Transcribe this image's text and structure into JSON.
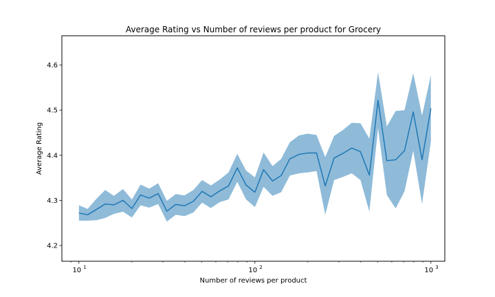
{
  "chart_data": {
    "type": "line",
    "title": "Average Rating vs Number of reviews per product for Grocery",
    "xlabel": "Number of reviews per product",
    "ylabel": "Average Rating",
    "xscale": "log",
    "xlim": [
      8,
      1200
    ],
    "ylim": [
      4.165,
      4.665
    ],
    "grid": false,
    "legend": "none",
    "x_ticks": [
      {
        "value": 10,
        "base": "10",
        "exp": "1"
      },
      {
        "value": 100,
        "base": "10",
        "exp": "2"
      },
      {
        "value": 1000,
        "base": "10",
        "exp": "3"
      }
    ],
    "y_ticks": [
      4.2,
      4.3,
      4.4,
      4.5,
      4.6
    ],
    "y_tick_labels": [
      "4.2",
      "4.3",
      "4.4",
      "4.5",
      "4.6"
    ],
    "colors": {
      "line": "#1f77b4",
      "band": "#1f77b4",
      "band_opacity": 0.5
    },
    "series": [
      {
        "x": [
          10,
          11.2,
          12.6,
          14.1,
          15.8,
          17.8,
          20,
          22.4,
          25.1,
          28.2,
          31.6,
          35.5,
          39.8,
          44.7,
          50.1,
          56.2,
          63.1,
          70.8,
          79.4,
          89.1,
          100,
          112,
          126,
          141,
          158,
          178,
          200,
          224,
          251,
          282,
          316,
          355,
          398,
          447,
          501,
          562,
          631,
          708,
          794,
          891,
          1000
        ],
        "y": [
          4.272,
          4.268,
          4.28,
          4.292,
          4.29,
          4.3,
          4.282,
          4.312,
          4.305,
          4.315,
          4.276,
          4.291,
          4.288,
          4.298,
          4.32,
          4.308,
          4.321,
          4.332,
          4.372,
          4.334,
          4.318,
          4.368,
          4.343,
          4.355,
          4.392,
          4.402,
          4.405,
          4.405,
          4.332,
          4.394,
          4.404,
          4.416,
          4.408,
          4.356,
          4.522,
          4.388,
          4.39,
          4.41,
          4.496,
          4.39,
          4.504
        ],
        "lower": [
          4.255,
          4.255,
          4.256,
          4.261,
          4.27,
          4.275,
          4.262,
          4.289,
          4.284,
          4.292,
          4.253,
          4.268,
          4.265,
          4.273,
          4.295,
          4.283,
          4.296,
          4.302,
          4.341,
          4.302,
          4.285,
          4.33,
          4.31,
          4.318,
          4.355,
          4.36,
          4.362,
          4.365,
          4.268,
          4.345,
          4.352,
          4.36,
          4.345,
          4.275,
          4.46,
          4.312,
          4.282,
          4.32,
          4.41,
          4.292,
          4.43
        ],
        "upper": [
          4.289,
          4.281,
          4.304,
          4.323,
          4.31,
          4.325,
          4.302,
          4.335,
          4.326,
          4.338,
          4.299,
          4.314,
          4.311,
          4.323,
          4.345,
          4.333,
          4.346,
          4.362,
          4.403,
          4.366,
          4.351,
          4.406,
          4.376,
          4.392,
          4.429,
          4.444,
          4.448,
          4.445,
          4.396,
          4.443,
          4.456,
          4.472,
          4.471,
          4.437,
          4.584,
          4.464,
          4.498,
          4.5,
          4.582,
          4.488,
          4.578
        ]
      }
    ]
  }
}
